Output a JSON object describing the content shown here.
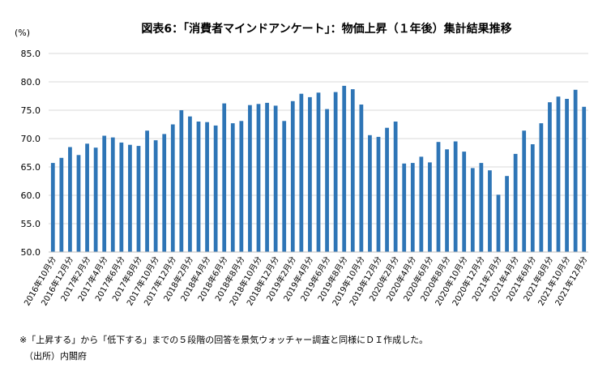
{
  "chart_data": {
    "type": "bar",
    "title": "図表6：「消費者マインドアンケート」：物価上昇（１年後）集計結果推移",
    "unit_label": "(%)",
    "xlabel": "",
    "ylabel": "(%)",
    "ylim": [
      50,
      85
    ],
    "yticks": [
      "50.0",
      "55.0",
      "60.0",
      "65.0",
      "70.0",
      "75.0",
      "80.0",
      "85.0"
    ],
    "grid": true,
    "bar_color": "#2E75B6",
    "categories": [
      "2016年10月分",
      "2016年11月分",
      "2016年12月分",
      "2017年1月分",
      "2017年2月分",
      "2017年3月分",
      "2017年4月分",
      "2017年5月分",
      "2017年6月分",
      "2017年7月分",
      "2017年8月分",
      "2017年9月分",
      "2017年10月分",
      "2017年11月分",
      "2017年12月分",
      "2018年1月分",
      "2018年2月分",
      "2018年3月分",
      "2018年4月分",
      "2018年5月分",
      "2018年6月分",
      "2018年7月分",
      "2018年8月分",
      "2018年9月分",
      "2018年10月分",
      "2018年11月分",
      "2018年12月分",
      "2019年1月分",
      "2019年2月分",
      "2019年3月分",
      "2019年4月分",
      "2019年5月分",
      "2019年6月分",
      "2019年7月分",
      "2019年8月分",
      "2019年9月分",
      "2019年10月分",
      "2019年11月分",
      "2019年12月分",
      "2020年1月分",
      "2020年2月分",
      "2020年3月分",
      "2020年4月分",
      "2020年5月分",
      "2020年6月分",
      "2020年7月分",
      "2020年8月分",
      "2020年9月分",
      "2020年10月分",
      "2020年11月分",
      "2020年12月分",
      "2021年1月分",
      "2021年2月分",
      "2021年3月分",
      "2021年4月分",
      "2021年5月分",
      "2021年6月分",
      "2021年7月分",
      "2021年8月分",
      "2021年9月分",
      "2021年10月分",
      "2021年11月分",
      "2021年12月分"
    ],
    "xtick_labels": [
      "2016年10月分",
      "2016年12月分",
      "2017年2月分",
      "2017年4月分",
      "2017年6月分",
      "2017年8月分",
      "2017年10月分",
      "2017年12月分",
      "2018年2月分",
      "2018年4月分",
      "2018年6月分",
      "2018年8月分",
      "2018年10月分",
      "2018年12月分",
      "2019年2月分",
      "2019年4月分",
      "2019年6月分",
      "2019年8月分",
      "2019年10月分",
      "2019年12月分",
      "2020年2月分",
      "2020年4月分",
      "2020年6月分",
      "2020年8月分",
      "2020年10月分",
      "2020年12月分",
      "2021年2月分",
      "2021年4月分",
      "2021年6月分",
      "2021年8月分",
      "2021年10月分",
      "2021年12月分"
    ],
    "values": [
      65.7,
      66.6,
      68.5,
      67.1,
      69.1,
      68.4,
      70.5,
      70.2,
      69.3,
      68.9,
      68.7,
      71.4,
      69.7,
      70.8,
      72.5,
      75.0,
      73.9,
      73.0,
      72.9,
      72.3,
      76.2,
      72.7,
      73.1,
      75.9,
      76.1,
      76.3,
      75.8,
      73.1,
      76.6,
      77.9,
      77.3,
      78.1,
      75.2,
      78.2,
      79.3,
      78.7,
      76.0,
      70.6,
      70.3,
      71.9,
      73.0,
      65.6,
      65.7,
      66.8,
      65.8,
      69.4,
      68.1,
      69.5,
      67.7,
      64.8,
      65.7,
      64.4,
      60.1,
      63.4,
      67.3,
      71.4,
      69.0,
      72.7,
      76.4,
      77.4,
      77.0,
      78.6,
      75.6
    ]
  },
  "footnote": "※「上昇する」から「低下する」までの５段階の回答を景気ウォッチャー調査と同様にＤＩ作成した。",
  "source": "（出所）内閣府"
}
